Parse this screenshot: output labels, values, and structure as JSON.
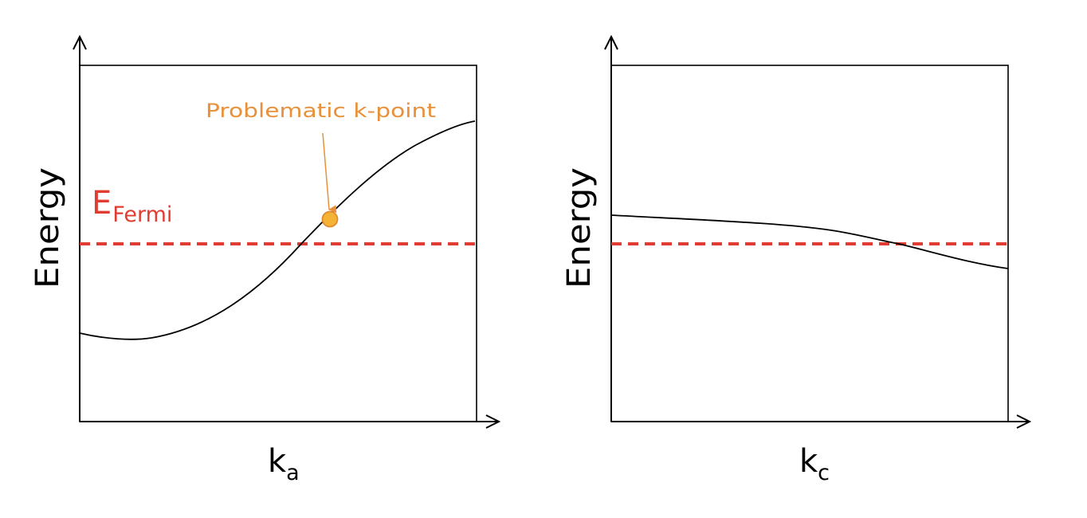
{
  "colors": {
    "fermi": "#e03c31",
    "callout": "#e8913a",
    "point_fill": "#f5b335",
    "point_stroke": "#e08a2e",
    "band": "#000000"
  },
  "left_panel": {
    "y_axis_title": "Energy",
    "x_axis_main": "k",
    "x_axis_sub": "a",
    "fermi_main": "E",
    "fermi_sub": "Fermi",
    "callout_label": "Problematic k-point"
  },
  "right_panel": {
    "y_axis_title": "Energy",
    "x_axis_main": "k",
    "x_axis_sub": "c"
  }
}
